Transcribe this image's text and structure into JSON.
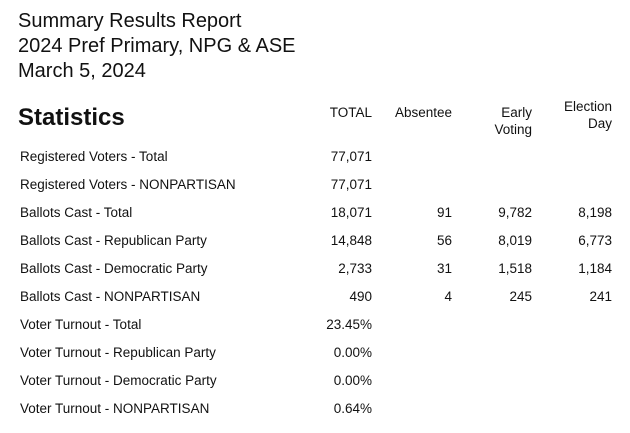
{
  "title_lines": [
    "Summary Results Report",
    "2024 Pref Primary, NPG & ASE",
    "March 5, 2024"
  ],
  "section_title": "Statistics",
  "columns": [
    "TOTAL",
    "Absentee",
    "Early Voting",
    "Election Day"
  ],
  "columns_split": {
    "early": [
      "Early",
      "Voting"
    ],
    "election": [
      "Election",
      "Day"
    ]
  },
  "rows": [
    {
      "label": "Registered Voters - Total",
      "total": "77,071",
      "absentee": "",
      "early": "",
      "election": ""
    },
    {
      "label": "Registered Voters - NONPARTISAN",
      "total": "77,071",
      "absentee": "",
      "early": "",
      "election": ""
    },
    {
      "label": "Ballots Cast - Total",
      "total": "18,071",
      "absentee": "91",
      "early": "9,782",
      "election": "8,198"
    },
    {
      "label": "Ballots Cast - Republican Party",
      "total": "14,848",
      "absentee": "56",
      "early": "8,019",
      "election": "6,773"
    },
    {
      "label": "Ballots Cast - Democratic Party",
      "total": "2,733",
      "absentee": "31",
      "early": "1,518",
      "election": "1,184"
    },
    {
      "label": "Ballots Cast - NONPARTISAN",
      "total": "490",
      "absentee": "4",
      "early": "245",
      "election": "241"
    },
    {
      "label": "Voter Turnout - Total",
      "total": "23.45%",
      "absentee": "",
      "early": "",
      "election": ""
    },
    {
      "label": "Voter Turnout - Republican Party",
      "total": "0.00%",
      "absentee": "",
      "early": "",
      "election": ""
    },
    {
      "label": "Voter Turnout - Democratic Party",
      "total": "0.00%",
      "absentee": "",
      "early": "",
      "election": ""
    },
    {
      "label": "Voter Turnout - NONPARTISAN",
      "total": "0.64%",
      "absentee": "",
      "early": "",
      "election": ""
    }
  ]
}
